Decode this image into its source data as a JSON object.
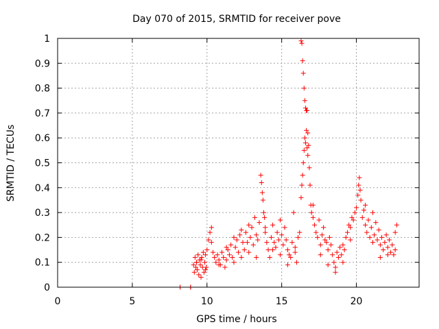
{
  "chart_data": {
    "type": "scatter",
    "title": "Day 070 of 2015, SRMTID for receiver pove",
    "xlabel": "GPS time / hours",
    "ylabel": "SRMTID / TECUs",
    "xlim": [
      0,
      24.2
    ],
    "ylim": [
      0,
      1
    ],
    "x_ticks": [
      "0",
      "5",
      "10",
      "15",
      "20"
    ],
    "y_ticks": [
      "0",
      "0.1",
      "0.2",
      "0.3",
      "0.4",
      "0.5",
      "0.6",
      "0.7",
      "0.8",
      "0.9",
      "1"
    ],
    "grid": true,
    "legend": "none",
    "marker": "plus",
    "color": "#ff0000",
    "series": [
      {
        "x": [
          8.2,
          8.2,
          8.9,
          8.9,
          9.1,
          9.15,
          9.2,
          9.25,
          9.3,
          9.35,
          9.4,
          9.45,
          9.5,
          9.55,
          9.6,
          9.65,
          9.7,
          9.75,
          9.8,
          9.85,
          9.9,
          9.95,
          10.0,
          10.1,
          10.2,
          10.3,
          10.4,
          10.5,
          10.6,
          10.7,
          10.8,
          10.9,
          11.0,
          11.1,
          11.2,
          11.3,
          11.4,
          11.5,
          11.6,
          11.7,
          11.8,
          11.9,
          12.0,
          12.1,
          12.2,
          12.3,
          12.4,
          12.5,
          12.6,
          12.7,
          12.8,
          12.9,
          13.0,
          13.1,
          13.2,
          13.3,
          13.4,
          13.5,
          13.6,
          13.65,
          13.7,
          13.75,
          13.8,
          13.85,
          13.9,
          14.0,
          14.1,
          14.2,
          14.3,
          14.4,
          14.5,
          14.6,
          14.7,
          14.8,
          14.9,
          15.0,
          15.1,
          15.2,
          15.3,
          15.4,
          15.5,
          15.6,
          15.7,
          15.8,
          15.9,
          16.0,
          16.1,
          16.2,
          16.3,
          16.3,
          16.35,
          16.35,
          16.4,
          16.4,
          16.45,
          16.45,
          16.5,
          16.5,
          16.55,
          16.55,
          16.6,
          16.6,
          16.65,
          16.65,
          16.7,
          16.7,
          16.75,
          16.75,
          16.8,
          16.85,
          16.9,
          16.95,
          17.0,
          17.1,
          17.2,
          17.3,
          17.4,
          17.5,
          17.6,
          17.7,
          17.8,
          17.9,
          18.0,
          18.1,
          18.2,
          18.3,
          18.4,
          18.5,
          18.6,
          18.7,
          18.8,
          18.9,
          19.0,
          19.1,
          19.2,
          19.3,
          19.4,
          19.5,
          19.6,
          19.7,
          19.8,
          19.9,
          20.0,
          20.1,
          20.15,
          20.2,
          20.25,
          20.3,
          20.4,
          20.5,
          20.6,
          20.7,
          20.8,
          20.9,
          21.0,
          21.1,
          21.2,
          21.3,
          21.4,
          21.5,
          21.6,
          21.7,
          21.8,
          21.9,
          22.0,
          22.1,
          22.2,
          22.3,
          22.4,
          22.5,
          22.6,
          22.7,
          9.3,
          9.6,
          9.9,
          10.3,
          10.8,
          11.3,
          11.8,
          12.3,
          12.8,
          13.3,
          13.9,
          14.4,
          14.9,
          15.4,
          15.9,
          17.1,
          17.6,
          18.1,
          18.6,
          19.1,
          19.6,
          20.6,
          21.1,
          21.6,
          22.1,
          22.6
        ],
        "y": [
          0.0,
          0.0,
          0.0,
          0.0,
          0.09,
          0.06,
          0.12,
          0.08,
          0.1,
          0.07,
          0.13,
          0.05,
          0.11,
          0.09,
          0.04,
          0.12,
          0.08,
          0.14,
          0.06,
          0.1,
          0.13,
          0.08,
          0.15,
          0.19,
          0.22,
          0.24,
          0.14,
          0.12,
          0.1,
          0.13,
          0.11,
          0.09,
          0.14,
          0.12,
          0.08,
          0.11,
          0.15,
          0.13,
          0.17,
          0.12,
          0.2,
          0.16,
          0.19,
          0.14,
          0.21,
          0.12,
          0.18,
          0.15,
          0.22,
          0.18,
          0.25,
          0.2,
          0.24,
          0.17,
          0.28,
          0.21,
          0.19,
          0.26,
          0.45,
          0.42,
          0.38,
          0.35,
          0.3,
          0.28,
          0.22,
          0.18,
          0.15,
          0.12,
          0.2,
          0.25,
          0.18,
          0.16,
          0.22,
          0.19,
          0.27,
          0.21,
          0.17,
          0.24,
          0.19,
          0.15,
          0.13,
          0.12,
          0.18,
          0.3,
          0.14,
          0.1,
          0.2,
          0.22,
          0.99,
          0.36,
          0.98,
          0.41,
          0.91,
          0.45,
          0.86,
          0.5,
          0.8,
          0.55,
          0.75,
          0.6,
          0.72,
          0.58,
          0.71,
          0.63,
          0.71,
          0.56,
          0.62,
          0.53,
          0.57,
          0.48,
          0.41,
          0.33,
          0.3,
          0.28,
          0.25,
          0.22,
          0.2,
          0.27,
          0.17,
          0.21,
          0.24,
          0.19,
          0.18,
          0.15,
          0.2,
          0.17,
          0.13,
          0.1,
          0.08,
          0.14,
          0.12,
          0.16,
          0.13,
          0.17,
          0.15,
          0.2,
          0.22,
          0.25,
          0.24,
          0.28,
          0.27,
          0.3,
          0.32,
          0.37,
          0.41,
          0.44,
          0.39,
          0.35,
          0.28,
          0.31,
          0.25,
          0.22,
          0.27,
          0.2,
          0.24,
          0.18,
          0.21,
          0.26,
          0.19,
          0.23,
          0.17,
          0.2,
          0.15,
          0.18,
          0.21,
          0.16,
          0.19,
          0.14,
          0.17,
          0.13,
          0.22,
          0.25,
          0.1,
          0.11,
          0.07,
          0.18,
          0.09,
          0.16,
          0.1,
          0.23,
          0.14,
          0.12,
          0.24,
          0.15,
          0.13,
          0.09,
          0.16,
          0.33,
          0.13,
          0.09,
          0.06,
          0.1,
          0.19,
          0.33,
          0.3,
          0.12,
          0.13,
          0.15
        ]
      }
    ]
  }
}
